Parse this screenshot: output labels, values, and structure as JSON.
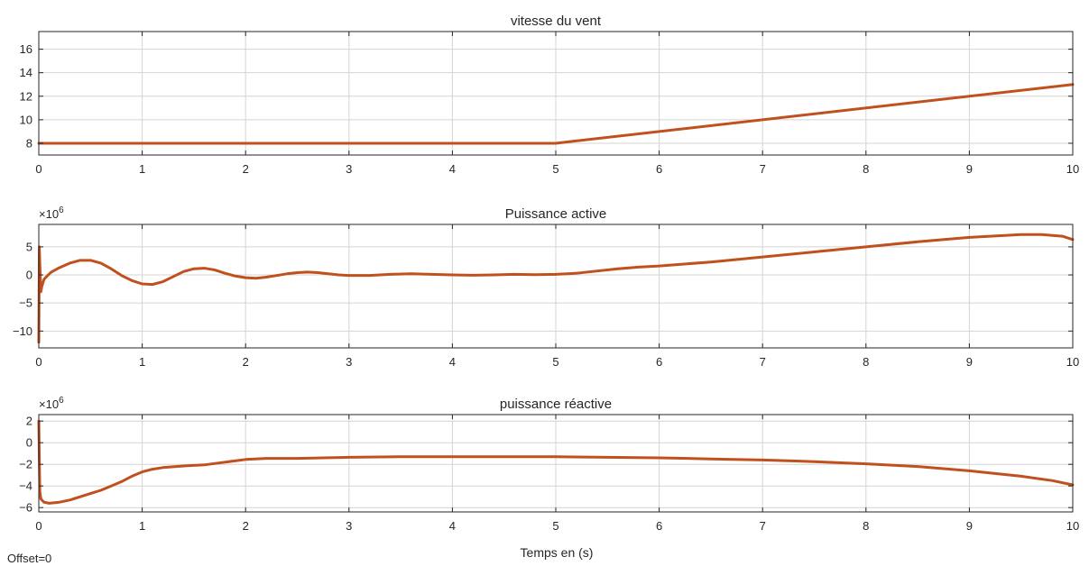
{
  "footer": {
    "offset_label": "Offset=0",
    "xlabel": "Temps en (s)"
  },
  "style": {
    "line_color": "#c0501e",
    "grid": true,
    "background": "#ffffff"
  },
  "chart_data": [
    {
      "type": "line",
      "title": "vitesse du vent",
      "xlabel": "",
      "ylabel": "",
      "exponent_label": "",
      "xlim": [
        0,
        10
      ],
      "ylim": [
        7,
        17.5
      ],
      "xticks": [
        0,
        1,
        2,
        3,
        4,
        5,
        6,
        7,
        8,
        9,
        10
      ],
      "yticks": [
        8,
        10,
        12,
        14,
        16
      ],
      "series": [
        {
          "x": [
            0,
            5,
            10
          ],
          "y": [
            8,
            8,
            13
          ]
        }
      ]
    },
    {
      "type": "line",
      "title": "Puissance active",
      "xlabel": "",
      "ylabel": "",
      "exponent_label": "×10^6",
      "xlim": [
        0,
        10
      ],
      "ylim": [
        -13,
        9
      ],
      "xticks": [
        0,
        1,
        2,
        3,
        4,
        5,
        6,
        7,
        8,
        9,
        10
      ],
      "yticks": [
        5,
        0,
        -5,
        -10
      ],
      "series": [
        {
          "x": [
            0,
            0.005,
            0.01,
            0.02,
            0.03,
            0.05,
            0.08,
            0.12,
            0.2,
            0.3,
            0.4,
            0.5,
            0.6,
            0.7,
            0.8,
            0.9,
            1.0,
            1.1,
            1.2,
            1.3,
            1.4,
            1.5,
            1.6,
            1.7,
            1.8,
            1.9,
            2.0,
            2.1,
            2.2,
            2.3,
            2.4,
            2.5,
            2.6,
            2.7,
            2.8,
            2.9,
            3.0,
            3.2,
            3.4,
            3.6,
            3.8,
            4.0,
            4.2,
            4.4,
            4.6,
            4.8,
            5.0,
            5.2,
            5.4,
            5.6,
            5.8,
            6.0,
            6.5,
            7.0,
            7.5,
            8.0,
            8.5,
            9.0,
            9.3,
            9.5,
            9.7,
            9.9,
            10.0
          ],
          "y": [
            -12,
            5,
            2,
            -3,
            -2,
            -0.8,
            -0.2,
            0.5,
            1.3,
            2.1,
            2.6,
            2.6,
            2.1,
            1.1,
            -0.1,
            -1.0,
            -1.6,
            -1.7,
            -1.2,
            -0.3,
            0.6,
            1.1,
            1.2,
            0.9,
            0.3,
            -0.2,
            -0.5,
            -0.6,
            -0.4,
            -0.1,
            0.2,
            0.4,
            0.5,
            0.4,
            0.2,
            0.0,
            -0.1,
            -0.1,
            0.1,
            0.2,
            0.1,
            0.0,
            -0.05,
            0.0,
            0.1,
            0.05,
            0.1,
            0.3,
            0.7,
            1.1,
            1.4,
            1.6,
            2.3,
            3.2,
            4.1,
            5.0,
            5.9,
            6.7,
            7.0,
            7.2,
            7.2,
            6.9,
            6.3
          ]
        }
      ]
    },
    {
      "type": "line",
      "title": "puissance réactive",
      "xlabel": "",
      "ylabel": "",
      "exponent_label": "×10^6",
      "xlim": [
        0,
        10
      ],
      "ylim": [
        -6.4,
        2.6
      ],
      "xticks": [
        0,
        1,
        2,
        3,
        4,
        5,
        6,
        7,
        8,
        9,
        10
      ],
      "yticks": [
        2,
        0,
        -2,
        -4,
        -6
      ],
      "series": [
        {
          "x": [
            0,
            0.005,
            0.01,
            0.02,
            0.05,
            0.1,
            0.2,
            0.3,
            0.4,
            0.5,
            0.6,
            0.7,
            0.8,
            0.9,
            1.0,
            1.1,
            1.2,
            1.4,
            1.6,
            1.8,
            2.0,
            2.2,
            2.5,
            3.0,
            3.5,
            4.0,
            4.5,
            5.0,
            5.5,
            6.0,
            6.5,
            7.0,
            7.5,
            8.0,
            8.5,
            9.0,
            9.5,
            9.8,
            10.0
          ],
          "y": [
            2,
            -1.5,
            -4.5,
            -5.2,
            -5.5,
            -5.6,
            -5.5,
            -5.3,
            -5.0,
            -4.7,
            -4.4,
            -4.0,
            -3.6,
            -3.1,
            -2.7,
            -2.45,
            -2.3,
            -2.15,
            -2.05,
            -1.8,
            -1.55,
            -1.45,
            -1.45,
            -1.35,
            -1.3,
            -1.3,
            -1.3,
            -1.3,
            -1.35,
            -1.4,
            -1.5,
            -1.6,
            -1.75,
            -1.95,
            -2.2,
            -2.6,
            -3.1,
            -3.5,
            -3.9
          ]
        }
      ]
    }
  ]
}
